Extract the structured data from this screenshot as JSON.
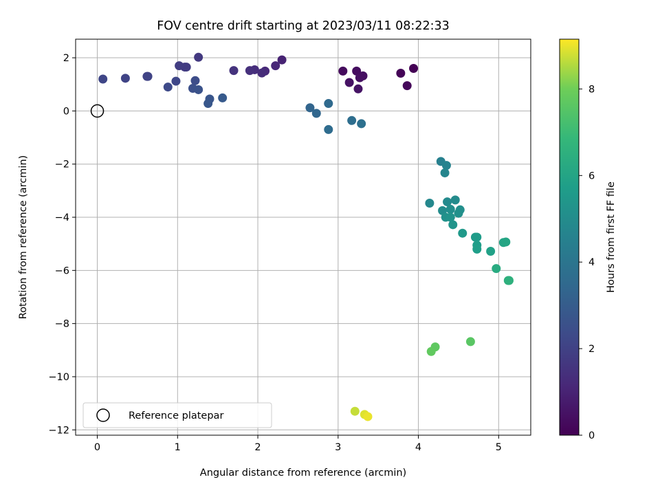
{
  "chart_data": {
    "type": "scatter",
    "title": "FOV centre drift starting at 2023/03/11 08:22:33",
    "xlabel": "Angular distance from reference (arcmin)",
    "ylabel": "Rotation from reference (arcmin)",
    "xlim": [
      -0.27,
      5.4
    ],
    "ylim": [
      -12.2,
      2.7
    ],
    "xticks": [
      0,
      1,
      2,
      3,
      4,
      5
    ],
    "yticks": [
      -12,
      -10,
      -8,
      -6,
      -4,
      -2,
      0,
      2
    ],
    "grid": true,
    "legend": {
      "location": "lower-left",
      "entries": [
        "Reference platepar"
      ]
    },
    "reference_point": {
      "x": 0,
      "y": 0
    },
    "colorbar": {
      "label": "Hours from first FF file",
      "range": [
        0,
        9.15
      ],
      "ticks": [
        0,
        2,
        4,
        6,
        8
      ],
      "colormap": "viridis"
    },
    "points": [
      {
        "x": 3.94,
        "y": 1.6,
        "c": 0.0
      },
      {
        "x": 3.78,
        "y": 1.42,
        "c": 0.1
      },
      {
        "x": 3.86,
        "y": 0.95,
        "c": 0.2
      },
      {
        "x": 3.06,
        "y": 1.5,
        "c": 0.3
      },
      {
        "x": 3.23,
        "y": 1.5,
        "c": 0.35
      },
      {
        "x": 3.31,
        "y": 1.32,
        "c": 0.4
      },
      {
        "x": 3.27,
        "y": 1.25,
        "c": 0.45
      },
      {
        "x": 3.14,
        "y": 1.07,
        "c": 0.5
      },
      {
        "x": 3.25,
        "y": 0.83,
        "c": 0.55
      },
      {
        "x": 2.3,
        "y": 1.92,
        "c": 1.0
      },
      {
        "x": 2.22,
        "y": 1.7,
        "c": 1.1
      },
      {
        "x": 2.09,
        "y": 1.5,
        "c": 1.2
      },
      {
        "x": 2.05,
        "y": 1.43,
        "c": 1.3
      },
      {
        "x": 1.96,
        "y": 1.55,
        "c": 1.35
      },
      {
        "x": 1.9,
        "y": 1.52,
        "c": 1.4
      },
      {
        "x": 1.7,
        "y": 1.52,
        "c": 1.5
      },
      {
        "x": 1.26,
        "y": 2.02,
        "c": 1.7
      },
      {
        "x": 1.09,
        "y": 1.65,
        "c": 1.75
      },
      {
        "x": 1.11,
        "y": 1.65,
        "c": 1.8
      },
      {
        "x": 1.02,
        "y": 1.7,
        "c": 1.85
      },
      {
        "x": 0.62,
        "y": 1.3,
        "c": 2.0
      },
      {
        "x": 0.63,
        "y": 1.3,
        "c": 2.05
      },
      {
        "x": 0.35,
        "y": 1.23,
        "c": 2.1
      },
      {
        "x": 0.07,
        "y": 1.2,
        "c": 2.15
      },
      {
        "x": 0.98,
        "y": 1.12,
        "c": 2.2
      },
      {
        "x": 0.88,
        "y": 0.9,
        "c": 2.3
      },
      {
        "x": 1.22,
        "y": 1.14,
        "c": 2.4
      },
      {
        "x": 1.19,
        "y": 0.85,
        "c": 2.5
      },
      {
        "x": 1.26,
        "y": 0.8,
        "c": 2.6
      },
      {
        "x": 1.4,
        "y": 0.45,
        "c": 2.7
      },
      {
        "x": 1.38,
        "y": 0.28,
        "c": 2.8
      },
      {
        "x": 1.56,
        "y": 0.49,
        "c": 2.9
      },
      {
        "x": 2.65,
        "y": 0.12,
        "c": 3.3
      },
      {
        "x": 2.73,
        "y": -0.09,
        "c": 3.4
      },
      {
        "x": 2.88,
        "y": 0.28,
        "c": 3.5
      },
      {
        "x": 2.88,
        "y": -0.7,
        "c": 3.6
      },
      {
        "x": 3.17,
        "y": -0.36,
        "c": 3.7
      },
      {
        "x": 3.29,
        "y": -0.48,
        "c": 3.8
      },
      {
        "x": 4.28,
        "y": -1.9,
        "c": 4.5
      },
      {
        "x": 4.35,
        "y": -2.05,
        "c": 4.6
      },
      {
        "x": 4.33,
        "y": -2.33,
        "c": 4.7
      },
      {
        "x": 4.14,
        "y": -3.47,
        "c": 4.8
      },
      {
        "x": 4.36,
        "y": -3.42,
        "c": 4.9
      },
      {
        "x": 4.46,
        "y": -3.35,
        "c": 4.95
      },
      {
        "x": 4.3,
        "y": -3.75,
        "c": 5.0
      },
      {
        "x": 4.4,
        "y": -3.7,
        "c": 5.05
      },
      {
        "x": 4.52,
        "y": -3.72,
        "c": 5.1
      },
      {
        "x": 4.5,
        "y": -3.85,
        "c": 5.15
      },
      {
        "x": 4.34,
        "y": -4.0,
        "c": 5.2
      },
      {
        "x": 4.4,
        "y": -4.0,
        "c": 5.25
      },
      {
        "x": 4.43,
        "y": -4.28,
        "c": 5.3
      },
      {
        "x": 4.55,
        "y": -4.6,
        "c": 5.5
      },
      {
        "x": 4.71,
        "y": -4.75,
        "c": 5.6
      },
      {
        "x": 4.73,
        "y": -4.75,
        "c": 5.65
      },
      {
        "x": 4.73,
        "y": -5.05,
        "c": 5.7
      },
      {
        "x": 4.73,
        "y": -5.2,
        "c": 5.75
      },
      {
        "x": 4.9,
        "y": -5.28,
        "c": 5.85
      },
      {
        "x": 5.06,
        "y": -4.95,
        "c": 6.0
      },
      {
        "x": 5.09,
        "y": -4.93,
        "c": 6.05
      },
      {
        "x": 4.97,
        "y": -5.93,
        "c": 6.3
      },
      {
        "x": 5.12,
        "y": -6.38,
        "c": 6.5
      },
      {
        "x": 5.13,
        "y": -6.38,
        "c": 6.55
      },
      {
        "x": 4.65,
        "y": -8.68,
        "c": 7.6
      },
      {
        "x": 4.21,
        "y": -8.88,
        "c": 7.7
      },
      {
        "x": 4.16,
        "y": -9.05,
        "c": 7.75
      },
      {
        "x": 3.21,
        "y": -11.3,
        "c": 8.7
      },
      {
        "x": 3.33,
        "y": -11.42,
        "c": 8.9
      },
      {
        "x": 3.37,
        "y": -11.5,
        "c": 9.0
      }
    ]
  }
}
